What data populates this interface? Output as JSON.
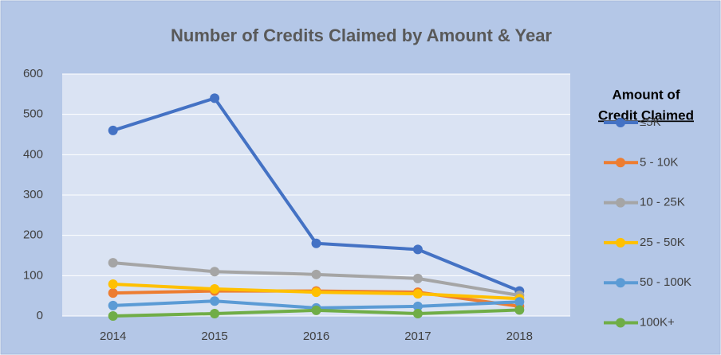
{
  "chart_data": {
    "type": "line",
    "title": "Number of Credits Claimed by Amount & Year",
    "categories": [
      "2014",
      "2015",
      "2016",
      "2017",
      "2018"
    ],
    "legend_title": [
      "Amount of",
      "Credit Claimed"
    ],
    "series": [
      {
        "name": "≤5K",
        "color": "#4472c4",
        "values": [
          460,
          540,
          180,
          165,
          62
        ]
      },
      {
        "name": "5 - 10K",
        "color": "#ed7d31",
        "values": [
          57,
          62,
          62,
          59,
          24
        ]
      },
      {
        "name": "10 - 25K",
        "color": "#a5a5a5",
        "values": [
          132,
          110,
          103,
          93,
          51
        ]
      },
      {
        "name": "25 - 50K",
        "color": "#ffc000",
        "values": [
          79,
          67,
          59,
          55,
          43
        ]
      },
      {
        "name": "50 - 100K",
        "color": "#5b9bd5",
        "values": [
          26,
          37,
          20,
          24,
          35
        ]
      },
      {
        "name": "100K+",
        "color": "#70ad47",
        "values": [
          0,
          6,
          14,
          6,
          15
        ]
      }
    ],
    "ylim": [
      0,
      600
    ],
    "yticks": [
      0,
      100,
      200,
      300,
      400,
      500,
      600
    ],
    "grid": true,
    "legend": "right"
  }
}
